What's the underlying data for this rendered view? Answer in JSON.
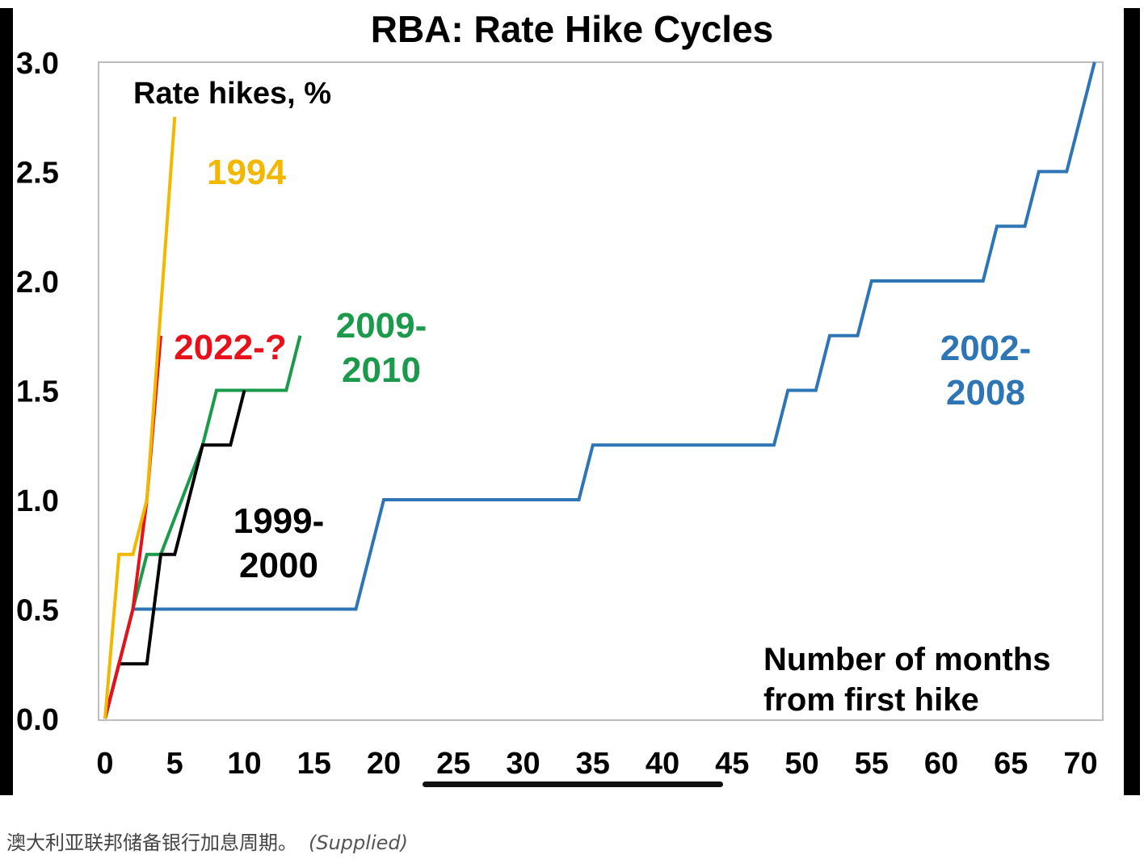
{
  "caption": {
    "text": "澳大利亚联邦储备银行加息周期。",
    "source": "(Supplied)"
  },
  "chart_data": {
    "type": "line",
    "title": "RBA: Rate Hike Cycles",
    "ylabel": "Rate hikes, %",
    "xlabel": "Number of months from first hike",
    "xlabel_lines": [
      "Number of months",
      "from first hike"
    ],
    "xlim": [
      -1,
      72
    ],
    "ylim": [
      0,
      3.0
    ],
    "xticks": [
      0,
      5,
      10,
      15,
      20,
      25,
      30,
      35,
      40,
      45,
      50,
      55,
      60,
      65,
      70
    ],
    "yticks": [
      "0.0",
      "0.5",
      "1.0",
      "1.5",
      "2.0",
      "2.5",
      "3.0"
    ],
    "grid": false,
    "series": [
      {
        "name": "2002-2008",
        "label_lines": [
          "2002-",
          "2008"
        ],
        "color": "#2e75b6",
        "points": [
          [
            0,
            0
          ],
          [
            1,
            0.25
          ],
          [
            2,
            0.5
          ],
          [
            18,
            0.5
          ],
          [
            20,
            1.0
          ],
          [
            34,
            1.0
          ],
          [
            35,
            1.25
          ],
          [
            48,
            1.25
          ],
          [
            49,
            1.5
          ],
          [
            51,
            1.5
          ],
          [
            52,
            1.75
          ],
          [
            54,
            1.75
          ],
          [
            55,
            2.0
          ],
          [
            63,
            2.0
          ],
          [
            64,
            2.25
          ],
          [
            66,
            2.25
          ],
          [
            67,
            2.5
          ],
          [
            69,
            2.5
          ],
          [
            71,
            3.0
          ]
        ]
      },
      {
        "name": "2009-2010",
        "label_lines": [
          "2009-",
          "2010"
        ],
        "color": "#1a9a4a",
        "points": [
          [
            0,
            0
          ],
          [
            1,
            0.25
          ],
          [
            2,
            0.5
          ],
          [
            3,
            0.75
          ],
          [
            4,
            0.75
          ],
          [
            7,
            1.25
          ],
          [
            8,
            1.5
          ],
          [
            13,
            1.5
          ],
          [
            14,
            1.75
          ]
        ]
      },
      {
        "name": "1999-2000",
        "label_lines": [
          "1999-",
          "2000"
        ],
        "color": "#000000",
        "points": [
          [
            0,
            0
          ],
          [
            1,
            0.25
          ],
          [
            3,
            0.25
          ],
          [
            4,
            0.75
          ],
          [
            5,
            0.75
          ],
          [
            7,
            1.25
          ],
          [
            9,
            1.25
          ],
          [
            10,
            1.5
          ]
        ]
      },
      {
        "name": "2022-?",
        "label_lines": [
          "2022-?"
        ],
        "color": "#e8101a",
        "points": [
          [
            0,
            0
          ],
          [
            1,
            0.25
          ],
          [
            2,
            0.5
          ],
          [
            3,
            1.0
          ],
          [
            4,
            1.75
          ]
        ]
      },
      {
        "name": "1994",
        "label_lines": [
          "1994"
        ],
        "color": "#f2b800",
        "points": [
          [
            0,
            0
          ],
          [
            1,
            0.75
          ],
          [
            2,
            0.75
          ],
          [
            3,
            1.0
          ],
          [
            5,
            2.75
          ]
        ]
      }
    ]
  }
}
